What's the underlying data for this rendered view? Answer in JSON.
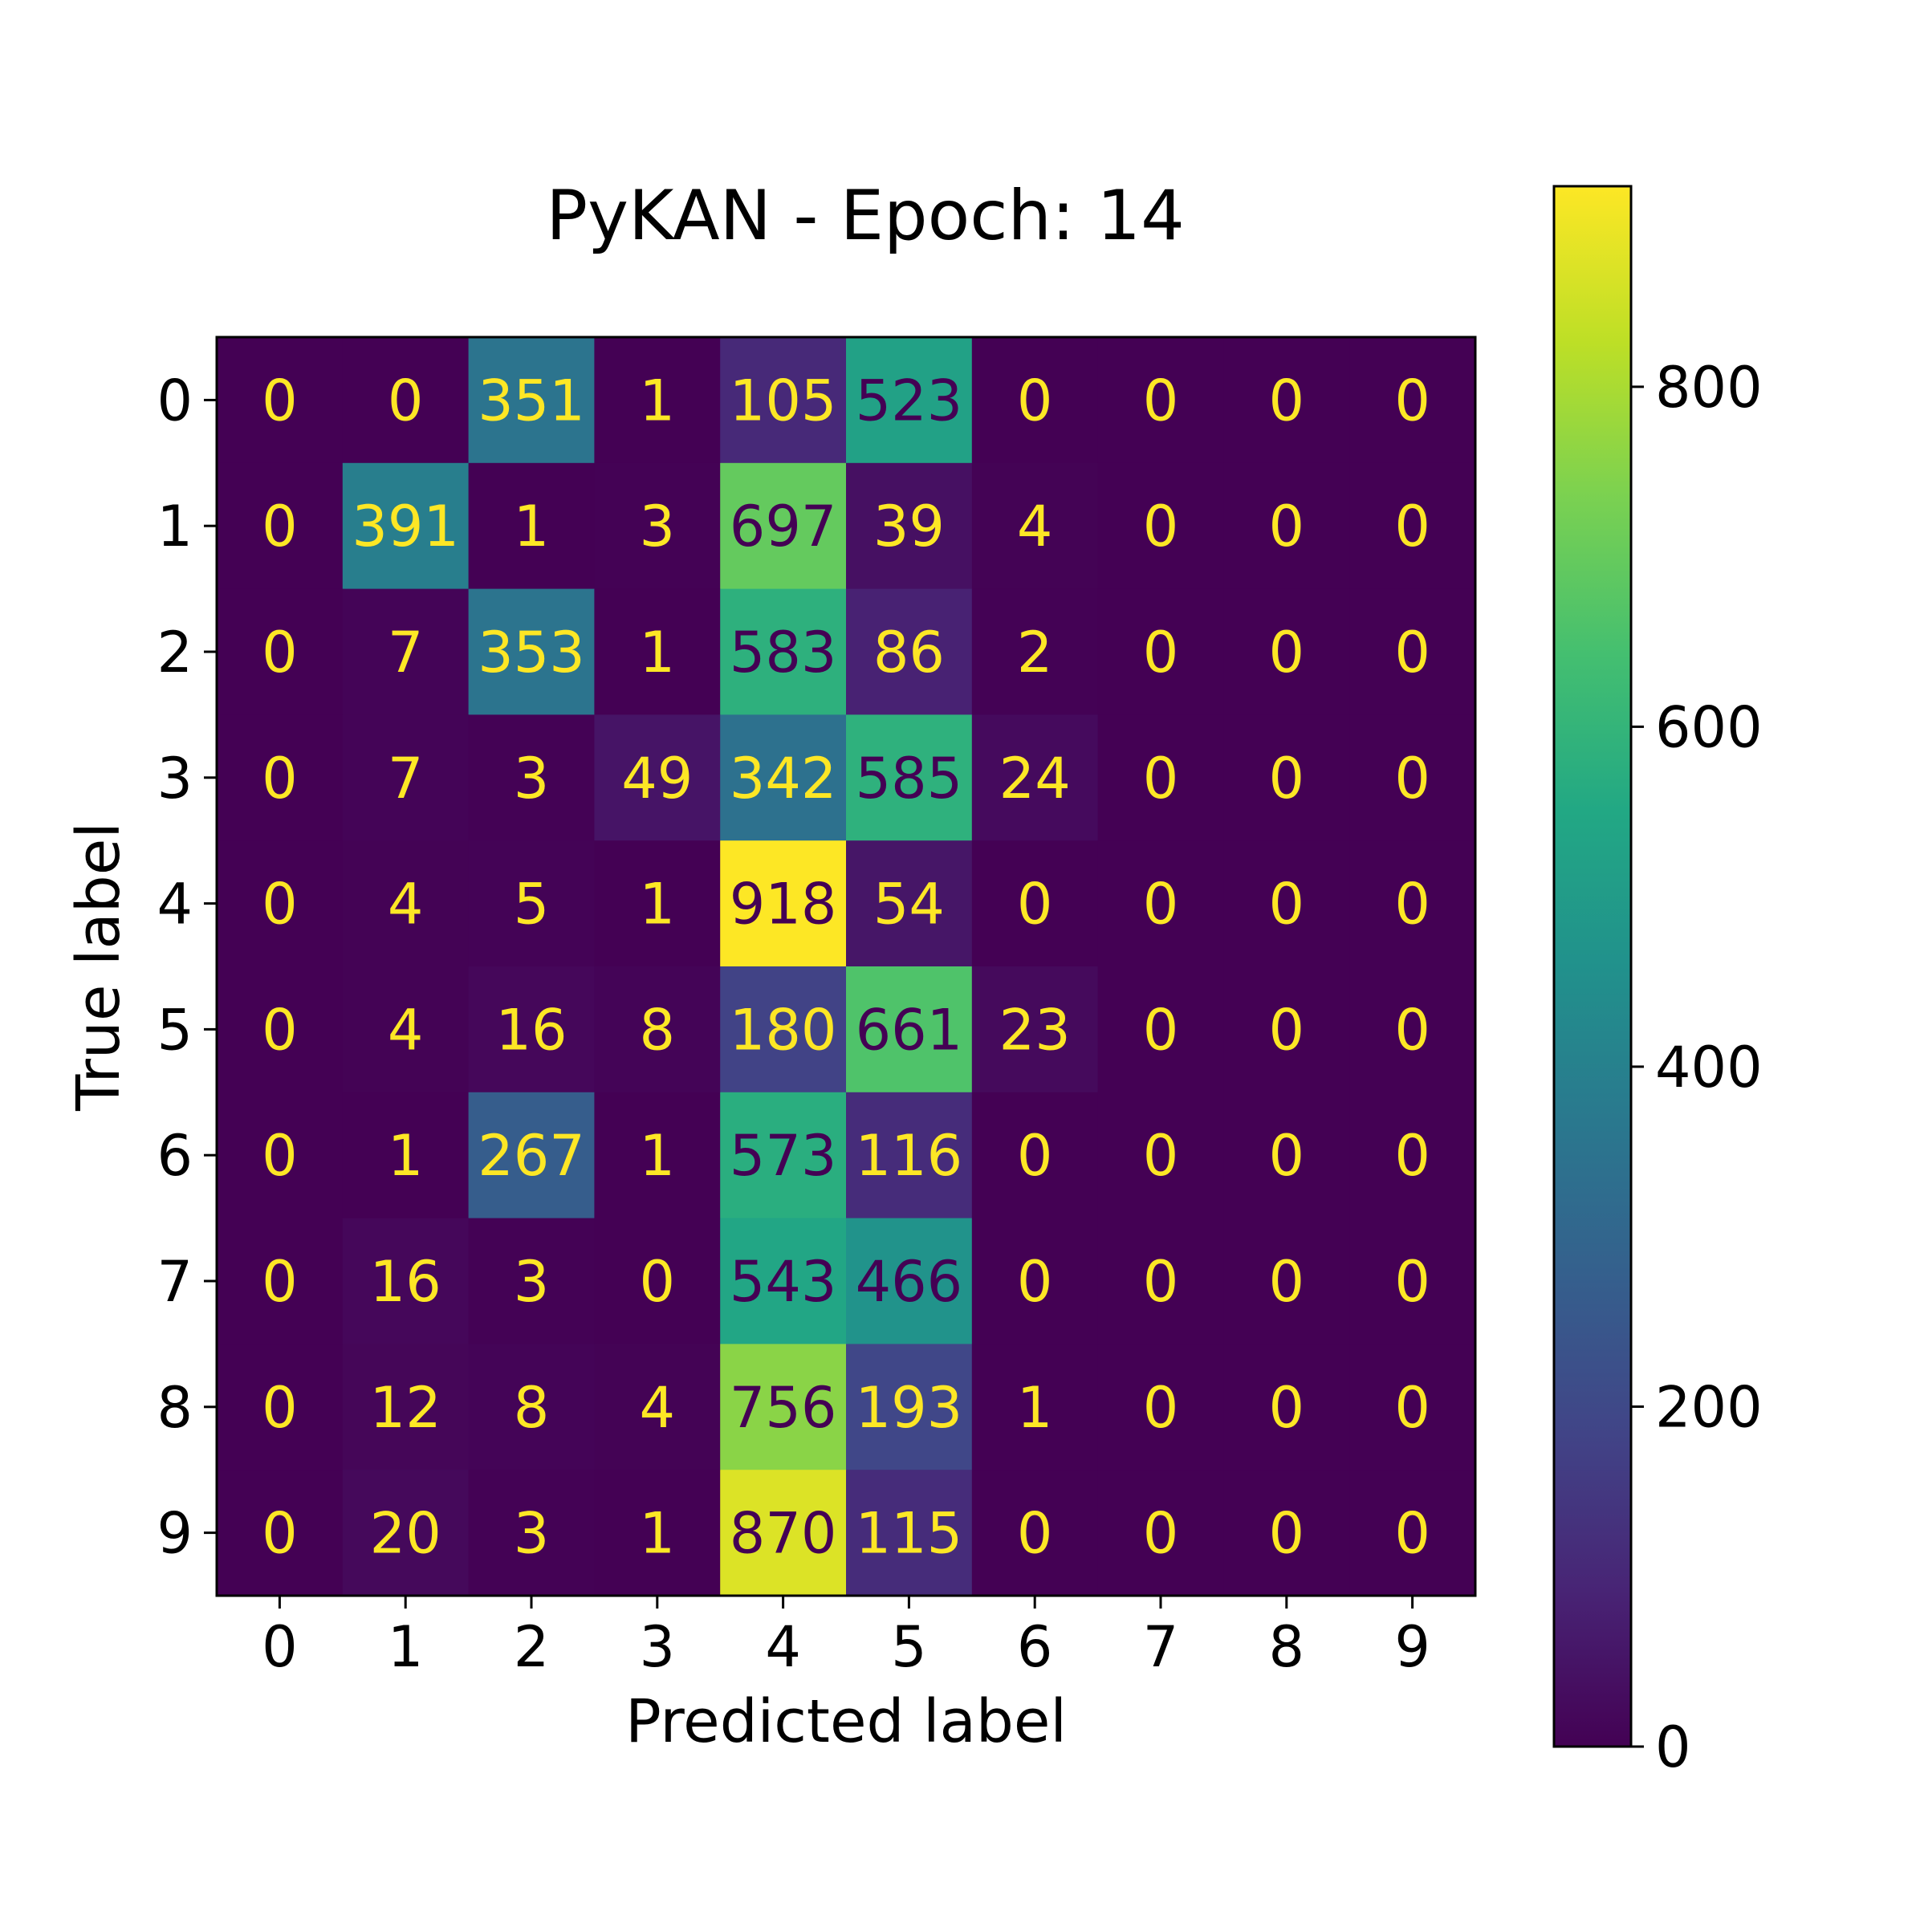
{
  "chart_data": {
    "type": "heatmap",
    "title": "PyKAN - Epoch: 14",
    "xlabel": "Predicted label",
    "ylabel": "True label",
    "x_categories": [
      "0",
      "1",
      "2",
      "3",
      "4",
      "5",
      "6",
      "7",
      "8",
      "9"
    ],
    "y_categories": [
      "0",
      "1",
      "2",
      "3",
      "4",
      "5",
      "6",
      "7",
      "8",
      "9"
    ],
    "values": [
      [
        0,
        0,
        351,
        1,
        105,
        523,
        0,
        0,
        0,
        0
      ],
      [
        0,
        391,
        1,
        3,
        697,
        39,
        4,
        0,
        0,
        0
      ],
      [
        0,
        7,
        353,
        1,
        583,
        86,
        2,
        0,
        0,
        0
      ],
      [
        0,
        7,
        3,
        49,
        342,
        585,
        24,
        0,
        0,
        0
      ],
      [
        0,
        4,
        5,
        1,
        918,
        54,
        0,
        0,
        0,
        0
      ],
      [
        0,
        4,
        16,
        8,
        180,
        661,
        23,
        0,
        0,
        0
      ],
      [
        0,
        1,
        267,
        1,
        573,
        116,
        0,
        0,
        0,
        0
      ],
      [
        0,
        16,
        3,
        0,
        543,
        466,
        0,
        0,
        0,
        0
      ],
      [
        0,
        12,
        8,
        4,
        756,
        193,
        1,
        0,
        0,
        0
      ],
      [
        0,
        20,
        3,
        1,
        870,
        115,
        0,
        0,
        0,
        0
      ]
    ],
    "colormap": "viridis",
    "vmin": 0,
    "vmax": 918,
    "colorbar_ticks": [
      0,
      200,
      400,
      600,
      800
    ],
    "text_color_light": "#fde725",
    "text_color_dark": "#440154"
  }
}
